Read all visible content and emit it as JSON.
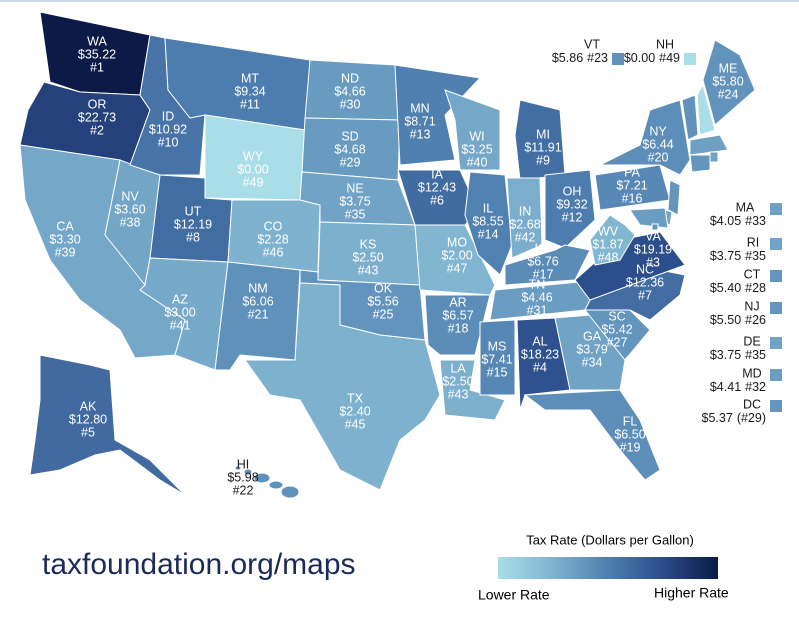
{
  "map": {
    "source": "taxfoundation.org/maps",
    "legend": {
      "title": "Tax Rate (Dollars per Gallon)",
      "low_label": "Lower Rate",
      "high_label": "Higher Rate",
      "colors": [
        "#a9dde8",
        "#7fb3cf",
        "#4f7fb0",
        "#2b4c8a",
        "#0b1a47"
      ]
    },
    "states": [
      {
        "abbr": "WA",
        "value": 35.22,
        "value_label": "$35.22",
        "rank": "#1"
      },
      {
        "abbr": "OR",
        "value": 22.73,
        "value_label": "$22.73",
        "rank": "#2"
      },
      {
        "abbr": "CA",
        "value": 3.3,
        "value_label": "$3.30",
        "rank": "#39"
      },
      {
        "abbr": "NV",
        "value": 3.6,
        "value_label": "$3.60",
        "rank": "#38"
      },
      {
        "abbr": "ID",
        "value": 10.92,
        "value_label": "$10.92",
        "rank": "#10"
      },
      {
        "abbr": "MT",
        "value": 9.34,
        "value_label": "$9.34",
        "rank": "#11"
      },
      {
        "abbr": "WY",
        "value": 0,
        "value_label": "$0.00",
        "rank": "#49"
      },
      {
        "abbr": "UT",
        "value": 12.19,
        "value_label": "$12.19",
        "rank": "#8"
      },
      {
        "abbr": "AZ",
        "value": 3.0,
        "value_label": "$3.00",
        "rank": "#41"
      },
      {
        "abbr": "CO",
        "value": 2.28,
        "value_label": "$2.28",
        "rank": "#46"
      },
      {
        "abbr": "NM",
        "value": 6.06,
        "value_label": "$6.06",
        "rank": "#21"
      },
      {
        "abbr": "ND",
        "value": 4.66,
        "value_label": "$4.66",
        "rank": "#30"
      },
      {
        "abbr": "SD",
        "value": 4.68,
        "value_label": "$4.68",
        "rank": "#29"
      },
      {
        "abbr": "NE",
        "value": 3.75,
        "value_label": "$3.75",
        "rank": "#35"
      },
      {
        "abbr": "KS",
        "value": 2.5,
        "value_label": "$2.50",
        "rank": "#43"
      },
      {
        "abbr": "OK",
        "value": 5.56,
        "value_label": "$5.56",
        "rank": "#25"
      },
      {
        "abbr": "TX",
        "value": 2.4,
        "value_label": "$2.40",
        "rank": "#45"
      },
      {
        "abbr": "MN",
        "value": 8.71,
        "value_label": "$8.71",
        "rank": "#13"
      },
      {
        "abbr": "IA",
        "value": 12.43,
        "value_label": "$12.43",
        "rank": "#6"
      },
      {
        "abbr": "MO",
        "value": 2.0,
        "value_label": "$2.00",
        "rank": "#47"
      },
      {
        "abbr": "AR",
        "value": 6.57,
        "value_label": "$6.57",
        "rank": "#18"
      },
      {
        "abbr": "LA",
        "value": 2.5,
        "value_label": "$2.50",
        "rank": "#43"
      },
      {
        "abbr": "WI",
        "value": 3.25,
        "value_label": "$3.25",
        "rank": "#40"
      },
      {
        "abbr": "IL",
        "value": 8.55,
        "value_label": "$8.55",
        "rank": "#14"
      },
      {
        "abbr": "MI",
        "value": 11.91,
        "value_label": "$11.91",
        "rank": "#9"
      },
      {
        "abbr": "IN",
        "value": 2.68,
        "value_label": "$2.68",
        "rank": "#42"
      },
      {
        "abbr": "OH",
        "value": 9.32,
        "value_label": "$9.32",
        "rank": "#12"
      },
      {
        "abbr": "KY",
        "value": 6.76,
        "value_label": "$6.76",
        "rank": "#17"
      },
      {
        "abbr": "TN",
        "value": 4.46,
        "value_label": "$4.46",
        "rank": "#31"
      },
      {
        "abbr": "MS",
        "value": 7.41,
        "value_label": "$7.41",
        "rank": "#15"
      },
      {
        "abbr": "AL",
        "value": 18.23,
        "value_label": "$18.23",
        "rank": "#4"
      },
      {
        "abbr": "GA",
        "value": 3.79,
        "value_label": "$3.79",
        "rank": "#34"
      },
      {
        "abbr": "FL",
        "value": 6.5,
        "value_label": "$6.50",
        "rank": "#19"
      },
      {
        "abbr": "SC",
        "value": 5.42,
        "value_label": "$5.42",
        "rank": "#27"
      },
      {
        "abbr": "NC",
        "value": 12.36,
        "value_label": "$12.36",
        "rank": "#7"
      },
      {
        "abbr": "VA",
        "value": 19.19,
        "value_label": "$19.19",
        "rank": "#3"
      },
      {
        "abbr": "WV",
        "value": 1.87,
        "value_label": "$1.87",
        "rank": "#48"
      },
      {
        "abbr": "PA",
        "value": 7.21,
        "value_label": "$7.21",
        "rank": "#16"
      },
      {
        "abbr": "NY",
        "value": 6.44,
        "value_label": "$6.44",
        "rank": "#20"
      },
      {
        "abbr": "VT",
        "value": 5.86,
        "value_label": "$5.86",
        "rank": "#23"
      },
      {
        "abbr": "NH",
        "value": 0,
        "value_label": "$0.00",
        "rank": "#49"
      },
      {
        "abbr": "ME",
        "value": 5.8,
        "value_label": "$5.80",
        "rank": "#24"
      },
      {
        "abbr": "MA",
        "value": 4.05,
        "value_label": "$4.05",
        "rank": "#33"
      },
      {
        "abbr": "RI",
        "value": 3.75,
        "value_label": "$3.75",
        "rank": "#35"
      },
      {
        "abbr": "CT",
        "value": 5.4,
        "value_label": "$5.40",
        "rank": "#28"
      },
      {
        "abbr": "NJ",
        "value": 5.5,
        "value_label": "$5.50",
        "rank": "#26"
      },
      {
        "abbr": "DE",
        "value": 3.75,
        "value_label": "$3.75",
        "rank": "#35"
      },
      {
        "abbr": "MD",
        "value": 4.41,
        "value_label": "$4.41",
        "rank": "#32"
      },
      {
        "abbr": "DC",
        "value": 5.37,
        "value_label": "$5.37",
        "rank": "(#29)"
      },
      {
        "abbr": "AK",
        "value": 12.8,
        "value_label": "$12.80",
        "rank": "#5"
      },
      {
        "abbr": "HI",
        "value": 5.98,
        "value_label": "$5.98",
        "rank": "#22"
      }
    ]
  }
}
